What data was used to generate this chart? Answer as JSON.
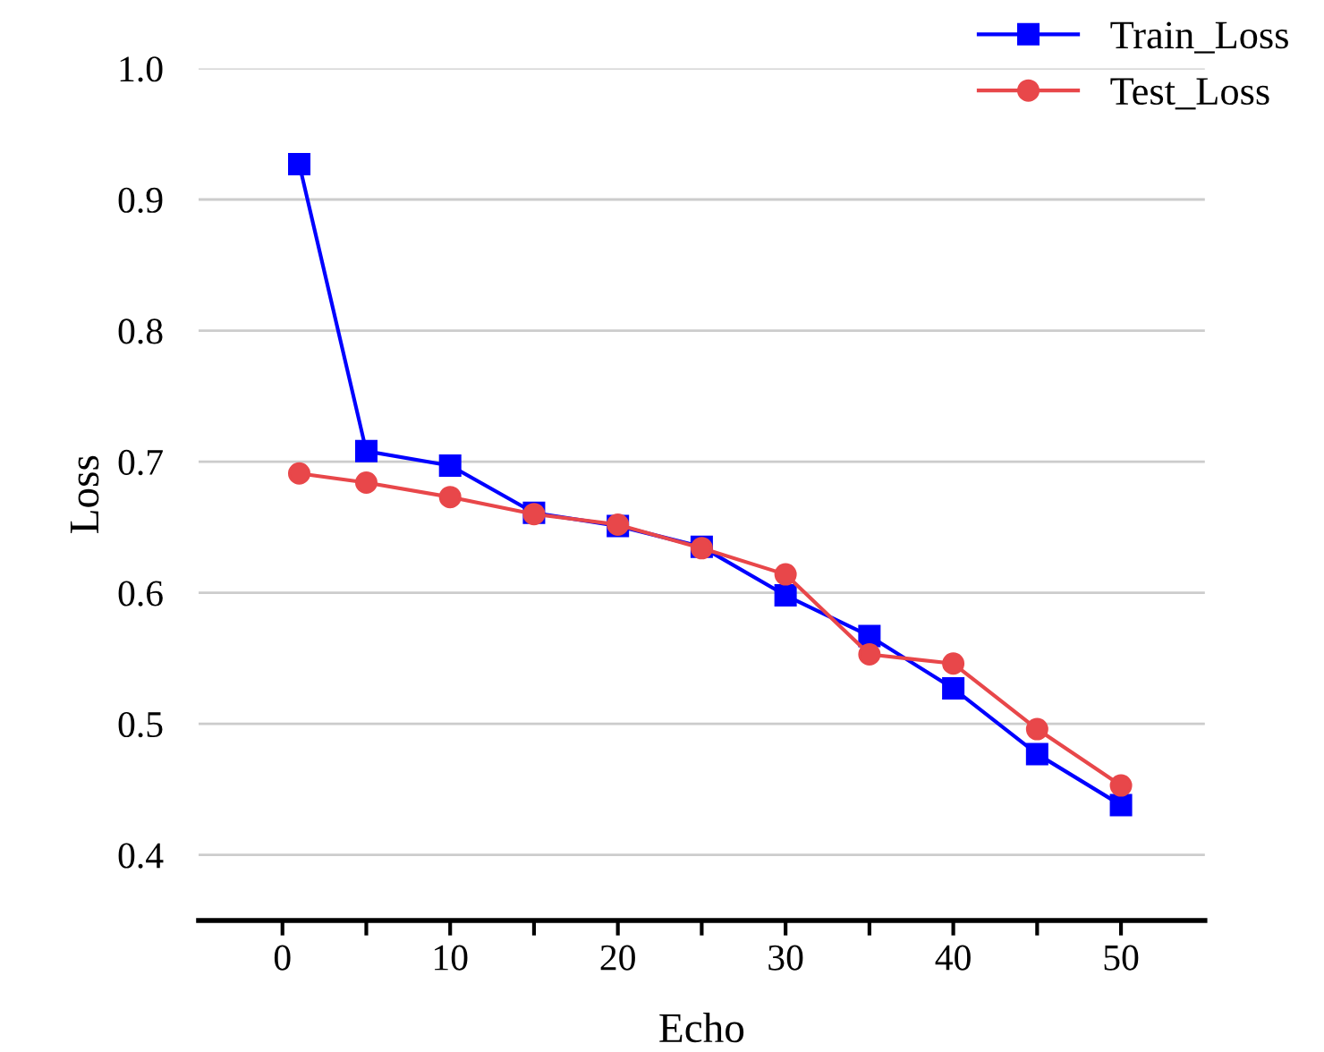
{
  "chart_data": {
    "type": "line",
    "xlabel": "Echo",
    "ylabel": "Loss",
    "x": [
      1,
      5,
      10,
      15,
      20,
      25,
      30,
      35,
      40,
      45,
      50
    ],
    "series": [
      {
        "name": "Train_Loss",
        "color": "#0000ff",
        "marker": "square",
        "values": [
          0.927,
          0.708,
          0.697,
          0.661,
          0.651,
          0.635,
          0.598,
          0.567,
          0.527,
          0.477,
          0.438
        ]
      },
      {
        "name": "Test_Loss",
        "color": "#e8474a",
        "marker": "circle",
        "values": [
          0.691,
          0.684,
          0.673,
          0.66,
          0.652,
          0.634,
          0.614,
          0.553,
          0.546,
          0.496,
          0.453
        ]
      }
    ],
    "xlim": [
      -5,
      55
    ],
    "xticks": [
      0,
      {
        "value": 5,
        "label": null
      },
      10,
      {
        "value": 15,
        "label": null
      },
      20,
      {
        "value": 25,
        "label": null
      },
      30,
      {
        "value": 35,
        "label": null
      },
      40,
      {
        "value": 45,
        "label": null
      },
      50
    ],
    "ylim": [
      0.35,
      1.0
    ],
    "yticks": [
      0.4,
      0.5,
      0.6,
      0.7,
      0.8,
      0.9,
      {
        "value": 1.0,
        "label": "1.0"
      }
    ],
    "grid": "y",
    "legend": "top right",
    "line_style": "solid"
  }
}
